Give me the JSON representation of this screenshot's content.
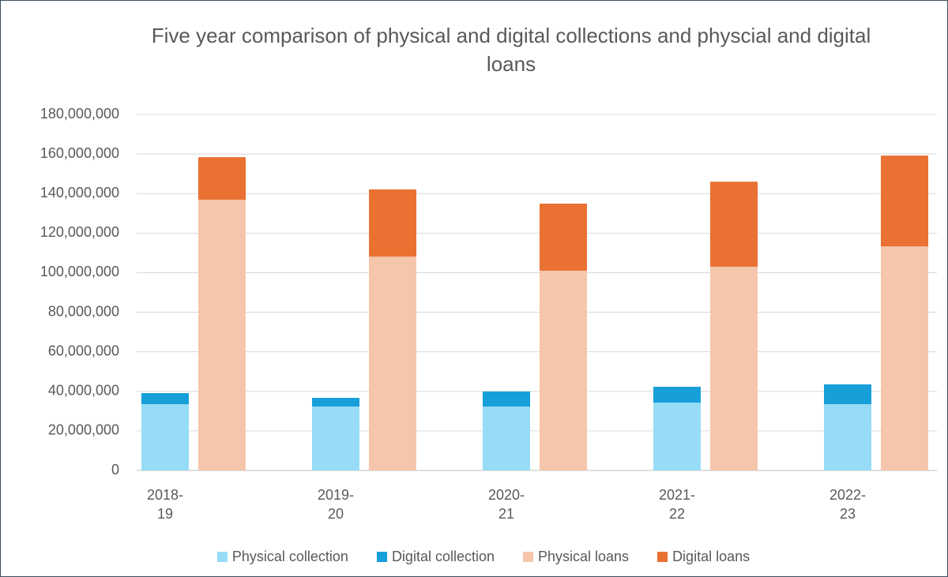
{
  "chart_data": {
    "type": "bar",
    "title": "Five year comparison of physical and digital collections and physcial and digital loans",
    "categories": [
      "2018-19",
      "2019-20",
      "2020-21",
      "2021-22",
      "2022-23"
    ],
    "series": [
      {
        "name": "Physical collection",
        "color": "#97dcf7",
        "values": [
          33500000,
          32300000,
          32300000,
          34300000,
          33500000
        ]
      },
      {
        "name": "Digital collection",
        "color": "#169fd9",
        "values": [
          5600000,
          4400000,
          7600000,
          8000000,
          10000000
        ]
      },
      {
        "name": "Physical loans",
        "color": "#f5c6ab",
        "values": [
          136900000,
          108100000,
          101000000,
          103000000,
          113300000
        ]
      },
      {
        "name": "Digital loans",
        "color": "#e97132",
        "values": [
          21500000,
          34000000,
          33900000,
          43000000,
          45900000
        ]
      }
    ],
    "ylim": [
      0,
      180000000
    ],
    "yticks": [
      0,
      {
        "value": 20000000,
        "label": "20,000,000"
      },
      {
        "value": 40000000,
        "label": "40,000,000"
      },
      {
        "value": 60000000,
        "label": "60,000,000"
      },
      {
        "value": 80000000,
        "label": "80,000,000"
      },
      {
        "value": 100000000,
        "label": "100,000,000"
      },
      {
        "value": 120000000,
        "label": "120,000,000"
      },
      {
        "value": 140000000,
        "label": "140,000,000"
      },
      {
        "value": 160000000,
        "label": "160,000,000"
      },
      {
        "value": 180000000,
        "label": "180,000,000"
      }
    ],
    "grid": true,
    "legend": "bottom"
  }
}
